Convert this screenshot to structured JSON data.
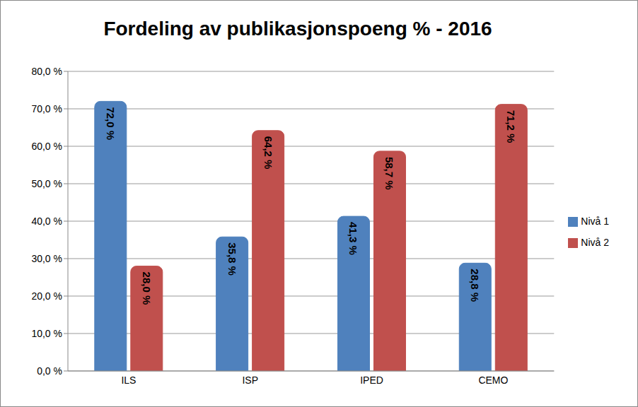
{
  "chart_data": {
    "type": "bar",
    "title": "Fordeling av publikasjonspoeng % - 2016",
    "categories": [
      "ILS",
      "ISP",
      "IPED",
      "CEMO"
    ],
    "series": [
      {
        "name": "Nivå 1",
        "color": "#4f81bd",
        "values": [
          72.0,
          35.8,
          41.3,
          28.8
        ],
        "value_labels": [
          "72,0 %",
          "35,8 %",
          "41,3 %",
          "28,8 %"
        ]
      },
      {
        "name": "Nivå 2",
        "color": "#c0504d",
        "values": [
          28.0,
          64.2,
          58.7,
          71.2
        ],
        "value_labels": [
          "28,0 %",
          "64,2 %",
          "58,7 %",
          "71,2 %"
        ]
      }
    ],
    "ylim": [
      0,
      80
    ],
    "yticks": [
      {
        "value": 0,
        "label": "0,0 %"
      },
      {
        "value": 10,
        "label": "10,0 %"
      },
      {
        "value": 20,
        "label": "20,0 %"
      },
      {
        "value": 30,
        "label": "30,0 %"
      },
      {
        "value": 40,
        "label": "40,0 %"
      },
      {
        "value": 50,
        "label": "50,0 %"
      },
      {
        "value": 60,
        "label": "60,0 %"
      },
      {
        "value": 70,
        "label": "70,0 %"
      },
      {
        "value": 80,
        "label": "80,0 %"
      }
    ],
    "grid": true,
    "legend": "right",
    "data_labels": true
  }
}
